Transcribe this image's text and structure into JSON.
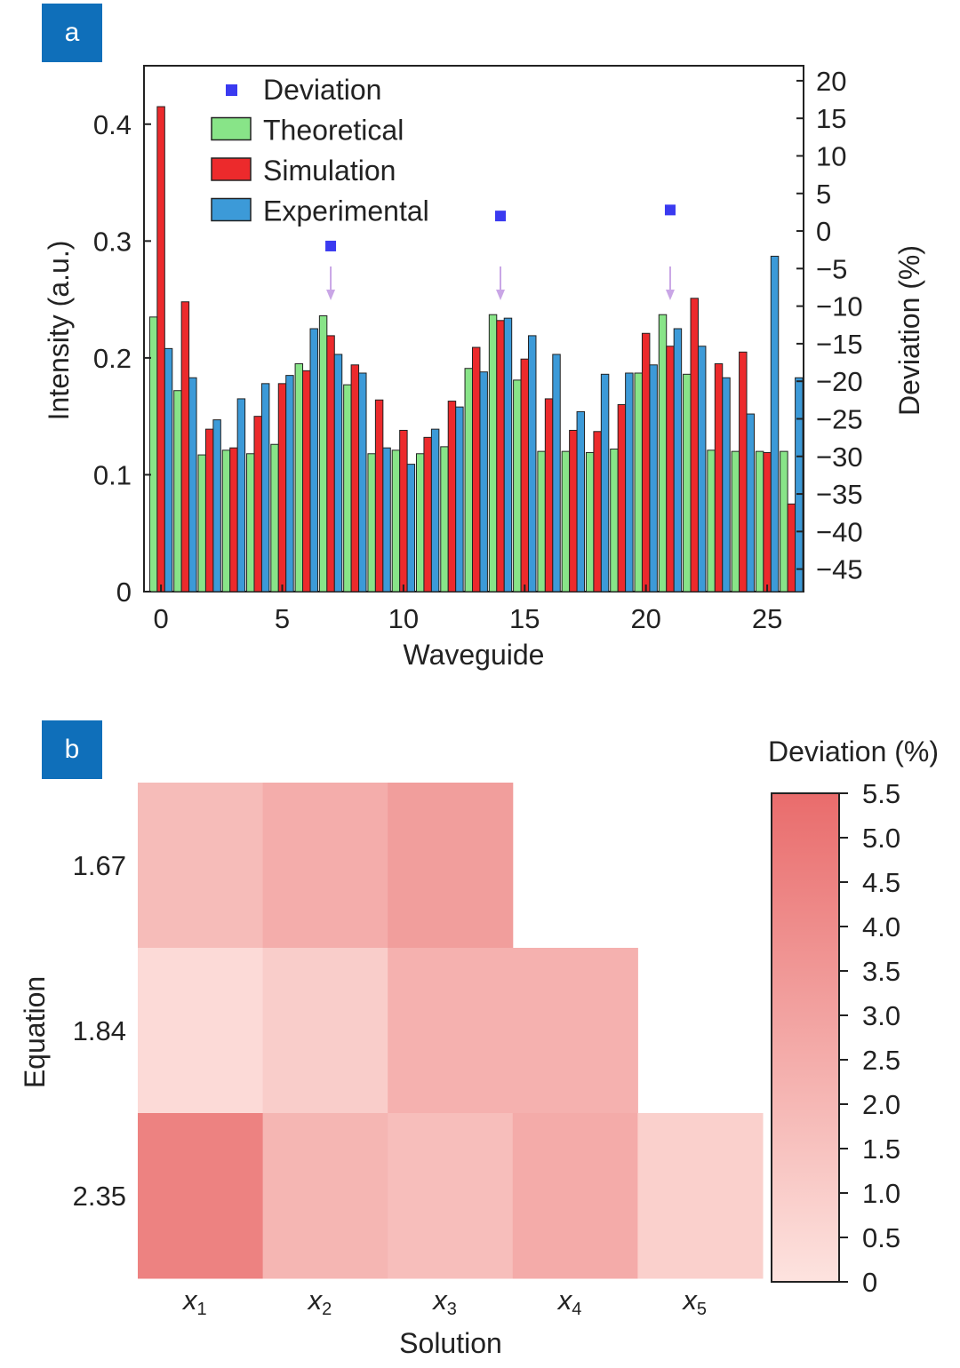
{
  "panels": {
    "a_label": "a",
    "b_label": "b"
  },
  "chart_data": [
    {
      "type": "bar",
      "panel": "a",
      "title": "",
      "xlabel": "Waveguide",
      "ylabel": "Intensity (a.u.)",
      "y2label": "Deviation (%)",
      "xlim": [
        -0.7,
        26.5
      ],
      "ylim": [
        0,
        0.45
      ],
      "y2lim": [
        -48,
        22
      ],
      "xticks": [
        0,
        5,
        10,
        15,
        20,
        25
      ],
      "yticks": [
        0,
        0.1,
        0.2,
        0.3,
        0.4
      ],
      "y2ticks": [
        20,
        15,
        10,
        5,
        0,
        -5,
        -10,
        -15,
        -20,
        -25,
        -30,
        -35,
        -40,
        -45
      ],
      "x": [
        0,
        1,
        2,
        3,
        4,
        5,
        6,
        7,
        8,
        9,
        10,
        11,
        12,
        13,
        14,
        15,
        16,
        17,
        18,
        19,
        20,
        21,
        22,
        23,
        24,
        25,
        26
      ],
      "series": [
        {
          "name": "Theoretical",
          "color": "#88e488",
          "values": [
            0.235,
            0.172,
            0.117,
            0.121,
            0.118,
            0.126,
            0.195,
            0.236,
            0.177,
            0.118,
            0.121,
            0.118,
            0.124,
            0.191,
            0.237,
            0.181,
            0.12,
            0.12,
            0.119,
            0.122,
            0.187,
            0.237,
            0.186,
            0.121,
            0.12,
            0.12,
            0.12
          ]
        },
        {
          "name": "Simulation",
          "color": "#ec2a2c",
          "values": [
            0.415,
            0.248,
            0.139,
            0.123,
            0.15,
            0.178,
            0.189,
            0.219,
            0.194,
            0.164,
            0.138,
            0.132,
            0.163,
            0.209,
            0.232,
            0.199,
            0.165,
            0.138,
            0.137,
            0.16,
            0.221,
            0.21,
            0.251,
            0.195,
            0.205,
            0.119,
            0.075
          ]
        },
        {
          "name": "Experimental",
          "color": "#3c9ad8",
          "values": [
            0.208,
            0.183,
            0.147,
            0.165,
            0.178,
            0.185,
            0.225,
            0.203,
            0.187,
            0.123,
            0.109,
            0.139,
            0.158,
            0.188,
            0.234,
            0.219,
            0.203,
            0.154,
            0.186,
            0.187,
            0.194,
            0.225,
            0.21,
            0.183,
            0.152,
            0.287,
            0.183
          ]
        }
      ],
      "deviation": {
        "name": "Deviation",
        "color": "#3a3af0",
        "x": [
          7,
          14,
          21
        ],
        "values": [
          -2.0,
          2.0,
          2.8
        ]
      },
      "legend": [
        "Deviation",
        "Theoretical",
        "Simulation",
        "Experimental"
      ],
      "legend_position": "top-left"
    },
    {
      "type": "heatmap",
      "panel": "b",
      "xlabel": "Solution",
      "ylabel": "Equation",
      "rows": [
        "1.67",
        "1.84",
        "2.35"
      ],
      "cols": [
        {
          "base": "x",
          "sub": "1"
        },
        {
          "base": "x",
          "sub": "2"
        },
        {
          "base": "x",
          "sub": "3"
        },
        {
          "base": "x",
          "sub": "4"
        },
        {
          "base": "x",
          "sub": "5"
        }
      ],
      "values": [
        [
          1.8,
          2.5,
          3.2,
          null,
          null
        ],
        [
          0.4,
          1.0,
          2.3,
          2.3,
          null
        ],
        [
          4.5,
          2.1,
          1.7,
          2.6,
          0.9
        ]
      ],
      "colorbar_title": "Deviation (%)",
      "colorbar_range": [
        0,
        5.5
      ],
      "colorbar_ticks": [
        "5.5",
        "5.0",
        "4.5",
        "4.0",
        "3.5",
        "3.0",
        "2.5",
        "2.0",
        "1.5",
        "1.0",
        "0.5",
        "0"
      ],
      "colormap": [
        "#fde3df",
        "#e96c6c"
      ]
    }
  ]
}
